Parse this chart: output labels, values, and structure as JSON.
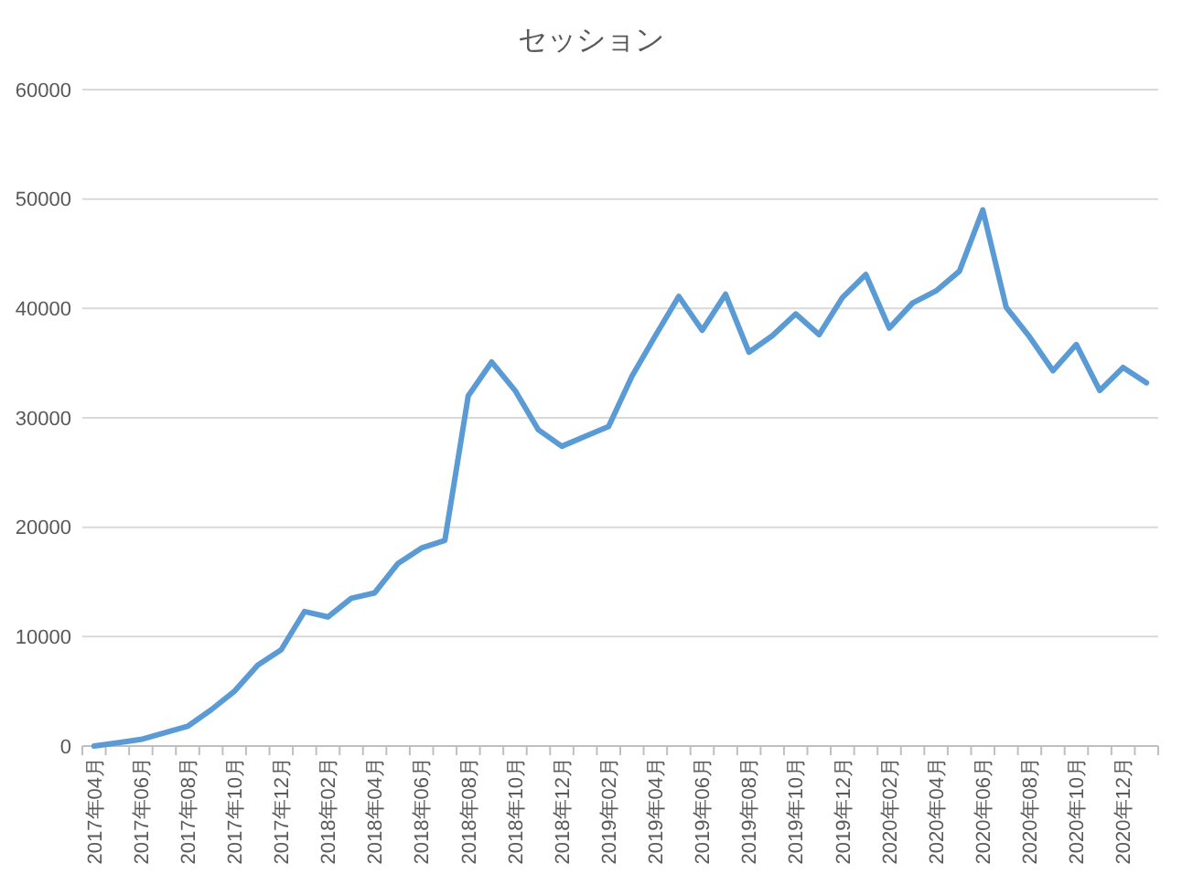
{
  "chart_data": {
    "type": "line",
    "title": "セッション",
    "categories": [
      "2017年04月",
      null,
      "2017年06月",
      null,
      "2017年08月",
      null,
      "2017年10月",
      null,
      "2017年12月",
      null,
      "2018年02月",
      null,
      "2018年04月",
      null,
      "2018年06月",
      null,
      "2018年08月",
      null,
      "2018年10月",
      null,
      "2018年12月",
      null,
      "2019年02月",
      null,
      "2019年04月",
      null,
      "2019年06月",
      null,
      "2019年08月",
      null,
      "2019年10月",
      null,
      "2019年12月",
      null,
      "2020年02月",
      null,
      "2020年04月",
      null,
      "2020年06月",
      null,
      "2020年08月",
      null,
      "2020年10月",
      null,
      "2020年12月",
      null
    ],
    "series": [
      {
        "color": "#5b9bd5",
        "values": [
          0,
          300,
          600,
          1200,
          1800,
          3300,
          5000,
          7400,
          8800,
          12300,
          11800,
          13500,
          14000,
          16700,
          18100,
          18800,
          32000,
          35100,
          32500,
          28900,
          27400,
          28300,
          29200,
          33800,
          37500,
          41100,
          38000,
          41300,
          36000,
          37500,
          39500,
          37600,
          41000,
          43100,
          38200,
          40500,
          41600,
          43400,
          49000,
          40100,
          37400,
          34300,
          36700,
          32500,
          34600,
          33200
        ]
      }
    ],
    "ylim": [
      0,
      60000
    ],
    "yticks": [
      0,
      10000,
      20000,
      30000,
      40000,
      50000,
      60000
    ],
    "grid": "y",
    "marker": "none",
    "line_style": "solid"
  }
}
